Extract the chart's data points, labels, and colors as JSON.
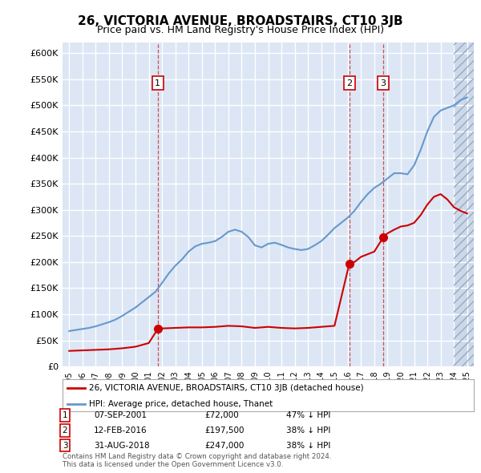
{
  "title": "26, VICTORIA AVENUE, BROADSTAIRS, CT10 3JB",
  "subtitle": "Price paid vs. HM Land Registry's House Price Index (HPI)",
  "title_fontsize": 11,
  "subtitle_fontsize": 9,
  "background_color": "#ffffff",
  "plot_bg_color": "#dce6f5",
  "grid_color": "#ffffff",
  "hpi_color": "#6699cc",
  "price_color": "#cc0000",
  "sale_marker_color": "#cc0000",
  "ylim": [
    0,
    620000
  ],
  "yticks": [
    0,
    50000,
    100000,
    150000,
    200000,
    250000,
    300000,
    350000,
    400000,
    450000,
    500000,
    550000,
    600000
  ],
  "ytick_labels": [
    "£0",
    "£50K",
    "£100K",
    "£150K",
    "£200K",
    "£250K",
    "£300K",
    "£350K",
    "£400K",
    "£450K",
    "£500K",
    "£550K",
    "£600K"
  ],
  "sales": [
    {
      "date_num": 2001.68,
      "price": 72000,
      "label": "1"
    },
    {
      "date_num": 2016.12,
      "price": 197500,
      "label": "2"
    },
    {
      "date_num": 2018.67,
      "price": 247000,
      "label": "3"
    }
  ],
  "legend_items": [
    {
      "label": "26, VICTORIA AVENUE, BROADSTAIRS, CT10 3JB (detached house)",
      "color": "#cc0000"
    },
    {
      "label": "HPI: Average price, detached house, Thanet",
      "color": "#6699cc"
    }
  ],
  "table_rows": [
    {
      "num": "1",
      "date": "07-SEP-2001",
      "price": "£72,000",
      "change": "47% ↓ HPI"
    },
    {
      "num": "2",
      "date": "12-FEB-2016",
      "price": "£197,500",
      "change": "38% ↓ HPI"
    },
    {
      "num": "3",
      "date": "31-AUG-2018",
      "price": "£247,000",
      "change": "38% ↓ HPI"
    }
  ],
  "footnote": "Contains HM Land Registry data © Crown copyright and database right 2024.\nThis data is licensed under the Open Government Licence v3.0.",
  "hatch_start": 2024.0,
  "xlim": [
    1994.5,
    2025.5
  ]
}
